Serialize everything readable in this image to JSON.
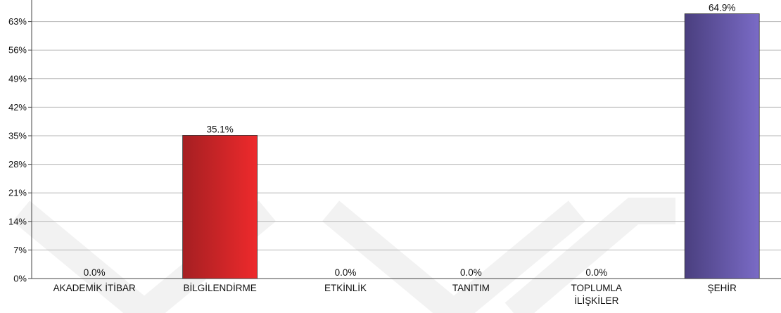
{
  "chart_data": {
    "type": "bar",
    "categories": [
      "AKADEMİK İTİBAR",
      "BİLGİLENDİRME",
      "ETKİNLİK",
      "TANITIM",
      "TOPLUMLA İLİŞKİLER",
      "ŞEHİR"
    ],
    "category_lines": [
      [
        "AKADEMİK İTİBAR"
      ],
      [
        "BİLGİLENDİRME"
      ],
      [
        "ETKİNLİK"
      ],
      [
        "TANITIM"
      ],
      [
        "TOPLUMLA",
        "İLİŞKİLER"
      ],
      [
        "ŞEHİR"
      ]
    ],
    "values": [
      0.0,
      35.1,
      0.0,
      0.0,
      0.0,
      64.9
    ],
    "value_labels": [
      "0.0%",
      "35.1%",
      "0.0%",
      "0.0%",
      "0.0%",
      "64.9%"
    ],
    "y_ticks": [
      0,
      7,
      14,
      21,
      28,
      35,
      42,
      49,
      56,
      63
    ],
    "y_tick_labels": [
      "0%",
      "7%",
      "14%",
      "21%",
      "28%",
      "35%",
      "42%",
      "49%",
      "56%",
      "63%"
    ],
    "ylim": [
      0,
      70
    ],
    "grid": true,
    "title": "",
    "xlabel": "",
    "ylabel": "",
    "colors": {
      "bar_red_dark": "#a51f22",
      "bar_red_light": "#ee2a2c",
      "bar_purple_dark": "#4a3f7f",
      "bar_purple_light": "#7a6bc6",
      "grid": "#b5b5b5",
      "axis": "#444444",
      "watermark": "#f2f2f2"
    }
  }
}
